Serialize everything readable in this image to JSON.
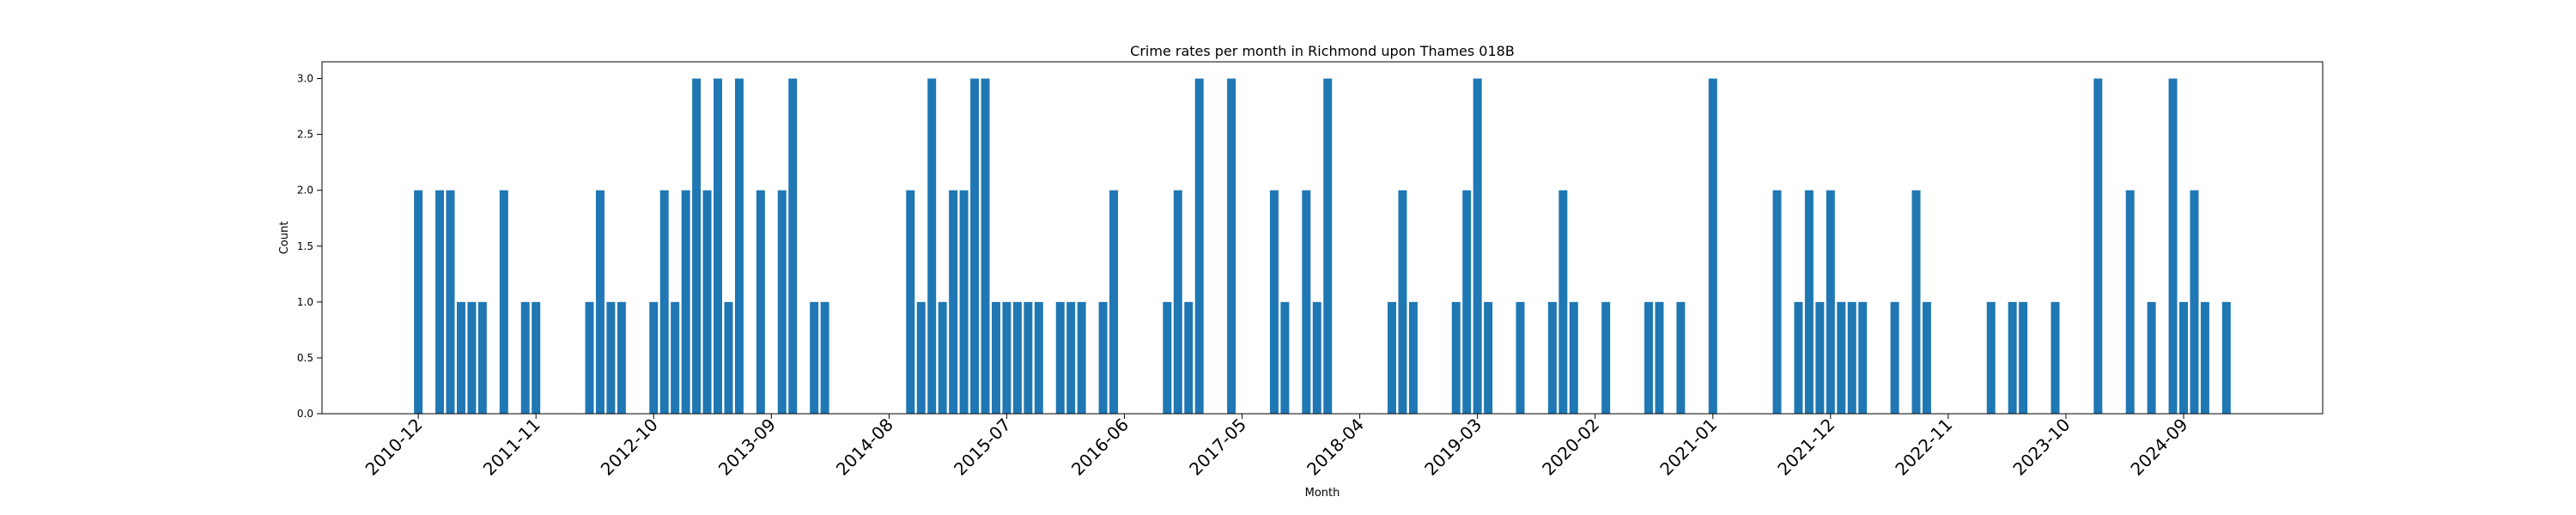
{
  "chart_data": {
    "type": "bar",
    "title": "Crime rates per month in Richmond upon Thames 018B",
    "xlabel": "Month",
    "ylabel": "Count",
    "x_range": [
      "2010-03",
      "2025-10"
    ],
    "ylim": [
      0,
      3.15
    ],
    "y_ticks": [
      "0.0",
      "0.5",
      "1.0",
      "1.5",
      "2.0",
      "2.5",
      "3.0"
    ],
    "x_ticks": [
      "2010-12",
      "2011-11",
      "2012-10",
      "2013-09",
      "2014-08",
      "2015-07",
      "2016-06",
      "2017-05",
      "2018-04",
      "2019-03",
      "2020-02",
      "2021-01",
      "2021-12",
      "2022-11",
      "2023-10",
      "2024-09"
    ],
    "bar_color": "#1f77b4",
    "grid": false,
    "legend": "none",
    "values": [
      {
        "x": "2010-12",
        "y": 2
      },
      {
        "x": "2011-02",
        "y": 2
      },
      {
        "x": "2011-03",
        "y": 2
      },
      {
        "x": "2011-04",
        "y": 1
      },
      {
        "x": "2011-05",
        "y": 1
      },
      {
        "x": "2011-06",
        "y": 1
      },
      {
        "x": "2011-08",
        "y": 2
      },
      {
        "x": "2011-10",
        "y": 1
      },
      {
        "x": "2011-11",
        "y": 1
      },
      {
        "x": "2012-04",
        "y": 1
      },
      {
        "x": "2012-05",
        "y": 2
      },
      {
        "x": "2012-06",
        "y": 1
      },
      {
        "x": "2012-07",
        "y": 1
      },
      {
        "x": "2012-10",
        "y": 1
      },
      {
        "x": "2012-11",
        "y": 2
      },
      {
        "x": "2012-12",
        "y": 1
      },
      {
        "x": "2013-01",
        "y": 2
      },
      {
        "x": "2013-02",
        "y": 3
      },
      {
        "x": "2013-03",
        "y": 2
      },
      {
        "x": "2013-04",
        "y": 3
      },
      {
        "x": "2013-05",
        "y": 1
      },
      {
        "x": "2013-06",
        "y": 3
      },
      {
        "x": "2013-08",
        "y": 2
      },
      {
        "x": "2013-10",
        "y": 2
      },
      {
        "x": "2013-11",
        "y": 3
      },
      {
        "x": "2014-01",
        "y": 1
      },
      {
        "x": "2014-02",
        "y": 1
      },
      {
        "x": "2014-10",
        "y": 2
      },
      {
        "x": "2014-11",
        "y": 1
      },
      {
        "x": "2014-12",
        "y": 3
      },
      {
        "x": "2015-01",
        "y": 1
      },
      {
        "x": "2015-02",
        "y": 2
      },
      {
        "x": "2015-03",
        "y": 2
      },
      {
        "x": "2015-04",
        "y": 3
      },
      {
        "x": "2015-05",
        "y": 3
      },
      {
        "x": "2015-06",
        "y": 1
      },
      {
        "x": "2015-07",
        "y": 1
      },
      {
        "x": "2015-08",
        "y": 1
      },
      {
        "x": "2015-09",
        "y": 1
      },
      {
        "x": "2015-10",
        "y": 1
      },
      {
        "x": "2015-12",
        "y": 1
      },
      {
        "x": "2016-01",
        "y": 1
      },
      {
        "x": "2016-02",
        "y": 1
      },
      {
        "x": "2016-04",
        "y": 1
      },
      {
        "x": "2016-05",
        "y": 2
      },
      {
        "x": "2016-10",
        "y": 1
      },
      {
        "x": "2016-11",
        "y": 2
      },
      {
        "x": "2016-12",
        "y": 1
      },
      {
        "x": "2017-01",
        "y": 3
      },
      {
        "x": "2017-04",
        "y": 3
      },
      {
        "x": "2017-08",
        "y": 2
      },
      {
        "x": "2017-09",
        "y": 1
      },
      {
        "x": "2017-11",
        "y": 2
      },
      {
        "x": "2017-12",
        "y": 1
      },
      {
        "x": "2018-01",
        "y": 3
      },
      {
        "x": "2018-07",
        "y": 1
      },
      {
        "x": "2018-08",
        "y": 2
      },
      {
        "x": "2018-09",
        "y": 1
      },
      {
        "x": "2019-01",
        "y": 1
      },
      {
        "x": "2019-02",
        "y": 2
      },
      {
        "x": "2019-03",
        "y": 3
      },
      {
        "x": "2019-04",
        "y": 1
      },
      {
        "x": "2019-07",
        "y": 1
      },
      {
        "x": "2019-10",
        "y": 1
      },
      {
        "x": "2019-11",
        "y": 2
      },
      {
        "x": "2019-12",
        "y": 1
      },
      {
        "x": "2020-03",
        "y": 1
      },
      {
        "x": "2020-07",
        "y": 1
      },
      {
        "x": "2020-08",
        "y": 1
      },
      {
        "x": "2020-10",
        "y": 1
      },
      {
        "x": "2021-01",
        "y": 3
      },
      {
        "x": "2021-07",
        "y": 2
      },
      {
        "x": "2021-09",
        "y": 1
      },
      {
        "x": "2021-10",
        "y": 2
      },
      {
        "x": "2021-11",
        "y": 1
      },
      {
        "x": "2021-12",
        "y": 2
      },
      {
        "x": "2022-01",
        "y": 1
      },
      {
        "x": "2022-02",
        "y": 1
      },
      {
        "x": "2022-03",
        "y": 1
      },
      {
        "x": "2022-06",
        "y": 1
      },
      {
        "x": "2022-08",
        "y": 2
      },
      {
        "x": "2022-09",
        "y": 1
      },
      {
        "x": "2023-03",
        "y": 1
      },
      {
        "x": "2023-05",
        "y": 1
      },
      {
        "x": "2023-06",
        "y": 1
      },
      {
        "x": "2023-09",
        "y": 1
      },
      {
        "x": "2024-01",
        "y": 3
      },
      {
        "x": "2024-04",
        "y": 2
      },
      {
        "x": "2024-06",
        "y": 1
      },
      {
        "x": "2024-08",
        "y": 3
      },
      {
        "x": "2024-09",
        "y": 1
      },
      {
        "x": "2024-10",
        "y": 2
      },
      {
        "x": "2024-11",
        "y": 1
      },
      {
        "x": "2025-01",
        "y": 1
      }
    ]
  }
}
